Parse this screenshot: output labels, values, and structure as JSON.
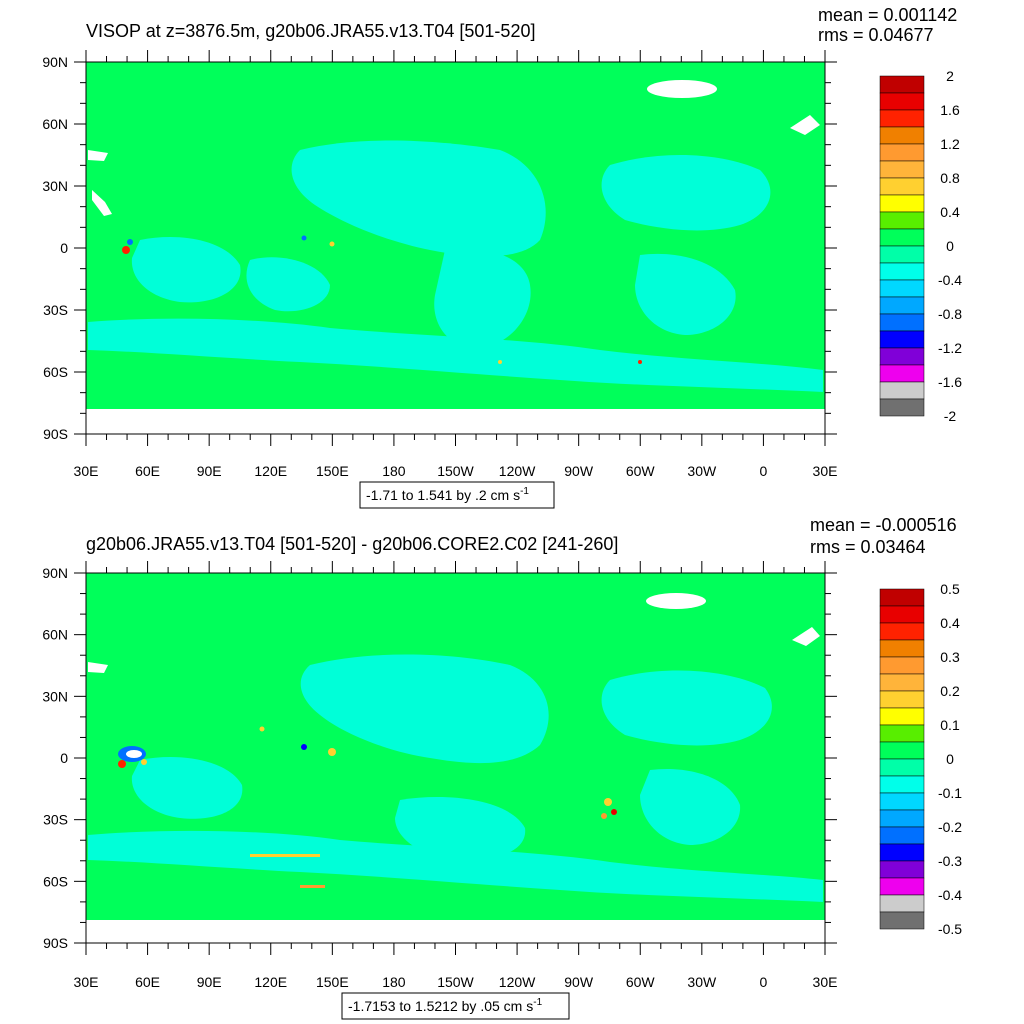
{
  "colors": {
    "ocean_zero": "#00ff5a",
    "cyan_light": "#00ffd8",
    "land": "#ffffff",
    "frame": "#000000"
  },
  "chart_data": [
    {
      "type": "heatmap",
      "title": "VISOP at z=3876.5m, g20b06.JRA55.v13.T04 [501-520]",
      "stats": [
        "mean = 0.001142",
        "rms = 0.04677"
      ],
      "x_ticks": [
        "30E",
        "60E",
        "90E",
        "120E",
        "150E",
        "180",
        "150W",
        "120W",
        "90W",
        "60W",
        "30W",
        "0",
        "30E"
      ],
      "y_ticks": [
        "90N",
        "60N",
        "30N",
        "0",
        "30S",
        "60S",
        "90S"
      ],
      "xlim": [
        30,
        390
      ],
      "ylim": [
        -90,
        90
      ],
      "colorbar": {
        "labels": [
          "2",
          "1.6",
          "1.2",
          "0.8",
          "0.4",
          "0",
          "-0.4",
          "-0.8",
          "-1.2",
          "-1.6",
          "-2"
        ],
        "colors": [
          "#c00000",
          "#e80000",
          "#ff2200",
          "#f08000",
          "#ff9a30",
          "#ffb43a",
          "#ffd030",
          "#ffff00",
          "#58ee00",
          "#00ff5a",
          "#00ffa8",
          "#00ffea",
          "#00d8ff",
          "#00a8ff",
          "#0070ff",
          "#0000ff",
          "#8000d8",
          "#ee00ee",
          "#cccccc",
          "#707070"
        ]
      },
      "footer_main": "-1.71 to 1.541 by .2 cm s",
      "footer_sup": "-1"
    },
    {
      "type": "heatmap",
      "title": "g20b06.JRA55.v13.T04 [501-520] - g20b06.CORE2.C02 [241-260]",
      "stats": [
        "mean = -0.000516",
        "rms = 0.03464"
      ],
      "x_ticks": [
        "30E",
        "60E",
        "90E",
        "120E",
        "150E",
        "180",
        "150W",
        "120W",
        "90W",
        "60W",
        "30W",
        "0",
        "30E"
      ],
      "y_ticks": [
        "90N",
        "60N",
        "30N",
        "0",
        "30S",
        "60S",
        "90S"
      ],
      "xlim": [
        30,
        390
      ],
      "ylim": [
        -90,
        90
      ],
      "colorbar": {
        "labels": [
          "0.5",
          "0.4",
          "0.3",
          "0.2",
          "0.1",
          "0",
          "-0.1",
          "-0.2",
          "-0.3",
          "-0.4",
          "-0.5"
        ],
        "colors": [
          "#c00000",
          "#e80000",
          "#ff2200",
          "#f08000",
          "#ff9a30",
          "#ffb43a",
          "#ffd030",
          "#ffff00",
          "#58ee00",
          "#00ff5a",
          "#00ffa8",
          "#00ffea",
          "#00d8ff",
          "#00a8ff",
          "#0070ff",
          "#0000ff",
          "#8000d8",
          "#ee00ee",
          "#cccccc",
          "#707070"
        ]
      },
      "footer_main": "-1.7153 to 1.5212 by .05 cm s",
      "footer_sup": "-1"
    }
  ]
}
